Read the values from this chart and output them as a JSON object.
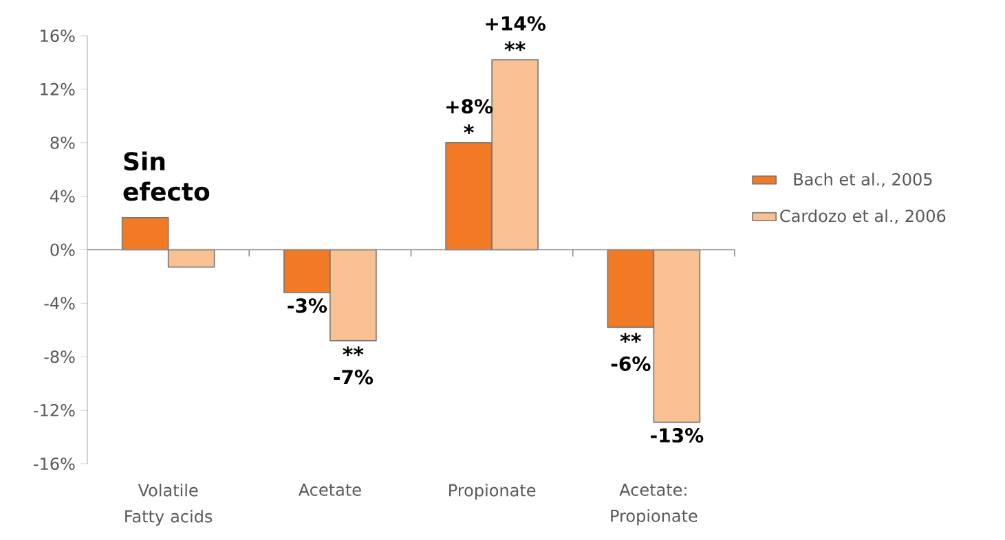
{
  "chart_data": {
    "type": "bar",
    "categories": [
      "Volatile Fatty acids",
      "Acetate",
      "Propionate",
      "Acetate: Propionate"
    ],
    "series": [
      {
        "name": "Bach et al., 2005",
        "color": "#f37a24",
        "values": [
          2.4,
          -3.2,
          8.0,
          -5.8
        ],
        "value_labels": [
          null,
          "-3%",
          "+8%",
          "-6%"
        ]
      },
      {
        "name": "Cardozo et al., 2006",
        "color": "#f9c192",
        "values": [
          -1.3,
          -6.8,
          14.2,
          -12.9
        ],
        "value_labels": [
          null,
          "-7%",
          "+14%",
          "-13%"
        ]
      }
    ],
    "ylim": [
      -16,
      16
    ],
    "yticks": [
      {
        "value": -16,
        "label": "-16%"
      },
      {
        "value": -12,
        "label": "-12%"
      },
      {
        "value": -8,
        "label": "-8%"
      },
      {
        "value": -4,
        "label": "-4%"
      },
      {
        "value": 0,
        "label": "0%"
      },
      {
        "value": 4,
        "label": "4%"
      },
      {
        "value": 8,
        "label": "8%"
      },
      {
        "value": 12,
        "label": "12%"
      },
      {
        "value": 16,
        "label": "16%"
      }
    ],
    "legend": "right",
    "annotations": [
      "Sin efecto",
      {
        "text": "*",
        "x": "Propionate",
        "y": 8.0
      },
      {
        "text": "**",
        "x": "Propionate",
        "y": 14.2
      },
      {
        "text": "**",
        "x": "Acetate",
        "y": -6.8
      },
      {
        "text": "**",
        "x": "Acetate: Propionate",
        "y": -5.8
      }
    ]
  }
}
